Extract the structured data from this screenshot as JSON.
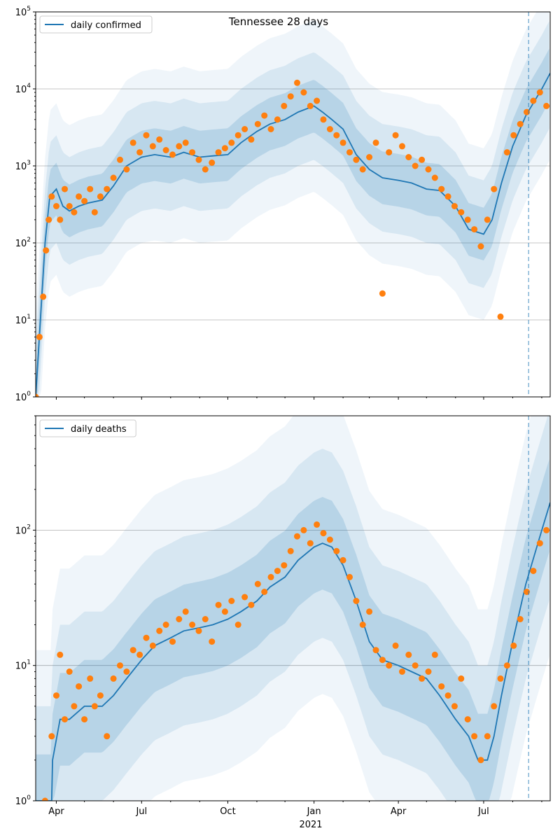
{
  "chart_data": [
    {
      "type": "line",
      "title": "Tennessee 28 days",
      "xlabel": "",
      "ylabel": "",
      "yscale": "log",
      "ylim": [
        1,
        100000
      ],
      "xlim": [
        "2020-03-10",
        "2021-09-10"
      ],
      "grid": "horizontal at major y ticks",
      "legend_position": "top-left",
      "y_ticks": [
        "10^0",
        "10^1",
        "10^2",
        "10^3",
        "10^4",
        "10^5"
      ],
      "x_ticks": [
        "Apr",
        "Jul",
        "Oct",
        "Jan",
        "Apr",
        "Jul"
      ],
      "x_year_label": "2021",
      "vline_date": "2021-08-18",
      "colors": {
        "line": "#1f77b4",
        "points": "#ff7f0e",
        "band": "#1f77b4"
      },
      "series": [
        {
          "name": "daily confirmed",
          "kind": "model-median",
          "x": [
            "2020-03-10",
            "2020-03-15",
            "2020-03-20",
            "2020-03-25",
            "2020-04-01",
            "2020-04-08",
            "2020-04-15",
            "2020-04-25",
            "2020-05-05",
            "2020-05-20",
            "2020-06-01",
            "2020-06-15",
            "2020-07-01",
            "2020-07-15",
            "2020-08-01",
            "2020-08-15",
            "2020-09-01",
            "2020-09-15",
            "2020-10-01",
            "2020-10-15",
            "2020-11-01",
            "2020-11-15",
            "2020-12-01",
            "2020-12-15",
            "2021-01-01",
            "2021-01-10",
            "2021-01-20",
            "2021-02-01",
            "2021-02-15",
            "2021-03-01",
            "2021-03-15",
            "2021-04-01",
            "2021-04-15",
            "2021-05-01",
            "2021-05-15",
            "2021-06-01",
            "2021-06-15",
            "2021-07-01",
            "2021-07-10",
            "2021-07-20",
            "2021-08-01",
            "2021-08-15",
            "2021-09-01",
            "2021-09-10"
          ],
          "values": [
            1,
            10,
            100,
            400,
            500,
            300,
            260,
            300,
            330,
            360,
            550,
            1000,
            1300,
            1400,
            1300,
            1500,
            1300,
            1350,
            1400,
            2000,
            2800,
            3500,
            4000,
            5000,
            6000,
            5000,
            4000,
            3000,
            1400,
            900,
            700,
            650,
            600,
            500,
            480,
            300,
            150,
            130,
            200,
            600,
            1800,
            4500,
            10000,
            16000
          ]
        },
        {
          "name": "",
          "kind": "observed daily confirmed (dots)",
          "x": [
            "2020-03-10",
            "2020-03-14",
            "2020-03-18",
            "2020-03-21",
            "2020-03-24",
            "2020-03-27",
            "2020-04-01",
            "2020-04-05",
            "2020-04-10",
            "2020-04-15",
            "2020-04-20",
            "2020-04-25",
            "2020-05-01",
            "2020-05-07",
            "2020-05-12",
            "2020-05-18",
            "2020-05-25",
            "2020-06-01",
            "2020-06-08",
            "2020-06-15",
            "2020-06-22",
            "2020-06-29",
            "2020-07-06",
            "2020-07-13",
            "2020-07-20",
            "2020-07-27",
            "2020-08-03",
            "2020-08-10",
            "2020-08-17",
            "2020-08-24",
            "2020-08-31",
            "2020-09-07",
            "2020-09-14",
            "2020-09-21",
            "2020-09-28",
            "2020-10-05",
            "2020-10-12",
            "2020-10-19",
            "2020-10-26",
            "2020-11-02",
            "2020-11-09",
            "2020-11-16",
            "2020-11-23",
            "2020-11-30",
            "2020-12-07",
            "2020-12-14",
            "2020-12-21",
            "2020-12-28",
            "2021-01-04",
            "2021-01-11",
            "2021-01-18",
            "2021-01-25",
            "2021-02-01",
            "2021-02-08",
            "2021-02-15",
            "2021-02-22",
            "2021-03-01",
            "2021-03-08",
            "2021-03-15",
            "2021-03-22",
            "2021-03-29",
            "2021-04-05",
            "2021-04-12",
            "2021-04-19",
            "2021-04-26",
            "2021-05-03",
            "2021-05-10",
            "2021-05-17",
            "2021-05-24",
            "2021-05-31",
            "2021-06-07",
            "2021-06-14",
            "2021-06-21",
            "2021-06-28",
            "2021-07-05",
            "2021-07-12",
            "2021-07-19",
            "2021-07-26",
            "2021-08-02",
            "2021-08-09",
            "2021-08-16",
            "2021-08-23",
            "2021-08-30",
            "2021-09-06"
          ],
          "values": [
            1,
            6,
            20,
            80,
            200,
            400,
            300,
            200,
            500,
            300,
            250,
            400,
            350,
            500,
            250,
            400,
            500,
            700,
            1200,
            900,
            2000,
            1500,
            2500,
            1800,
            2200,
            1600,
            1400,
            1800,
            2000,
            1500,
            1200,
            900,
            1100,
            1500,
            1700,
            2000,
            2500,
            3000,
            2200,
            3500,
            4500,
            3000,
            4000,
            6000,
            8000,
            12000,
            9000,
            6000,
            7000,
            4000,
            3000,
            2500,
            2000,
            1500,
            1200,
            900,
            1300,
            2000,
            22,
            1500,
            2500,
            1800,
            1300,
            1000,
            1200,
            900,
            700,
            500,
            400,
            300,
            250,
            200,
            150,
            90,
            200,
            500,
            11,
            1500,
            2500,
            3500,
            5000,
            7000,
            9000,
            6000
          ]
        }
      ]
    },
    {
      "type": "line",
      "title": "",
      "xlabel": "",
      "ylabel": "",
      "yscale": "log",
      "ylim": [
        1,
        700
      ],
      "xlim": [
        "2020-03-10",
        "2021-09-10"
      ],
      "grid": "horizontal at major y ticks",
      "legend_position": "top-left",
      "y_ticks": [
        "10^0",
        "10^1",
        "10^2"
      ],
      "x_ticks": [
        "Apr",
        "Jul",
        "Oct",
        "Jan",
        "Apr",
        "Jul"
      ],
      "x_year_label": "2021",
      "vline_date": "2021-08-18",
      "colors": {
        "line": "#1f77b4",
        "points": "#ff7f0e",
        "band": "#1f77b4"
      },
      "series": [
        {
          "name": "daily deaths",
          "kind": "model-median",
          "x": [
            "2020-03-10",
            "2020-03-27",
            "2020-03-28",
            "2020-04-05",
            "2020-04-15",
            "2020-05-01",
            "2020-05-20",
            "2020-06-01",
            "2020-06-15",
            "2020-07-01",
            "2020-07-15",
            "2020-08-01",
            "2020-08-15",
            "2020-09-01",
            "2020-09-15",
            "2020-10-01",
            "2020-10-15",
            "2020-11-01",
            "2020-11-15",
            "2020-12-01",
            "2020-12-15",
            "2021-01-01",
            "2021-01-10",
            "2021-01-20",
            "2021-02-01",
            "2021-02-15",
            "2021-03-01",
            "2021-03-15",
            "2021-04-01",
            "2021-04-15",
            "2021-05-01",
            "2021-05-15",
            "2021-06-01",
            "2021-06-15",
            "2021-06-25",
            "2021-07-05",
            "2021-07-12",
            "2021-07-20",
            "2021-08-01",
            "2021-08-15",
            "2021-09-01",
            "2021-09-10"
          ],
          "values": [
            1,
            1,
            2,
            4,
            4,
            5,
            5,
            6,
            8,
            11,
            14,
            16,
            18,
            19,
            20,
            22,
            25,
            30,
            38,
            45,
            60,
            75,
            80,
            75,
            55,
            30,
            15,
            11,
            10,
            9,
            8,
            6,
            4,
            3,
            2,
            2,
            3,
            6,
            15,
            40,
            100,
            160
          ]
        },
        {
          "name": "",
          "kind": "observed daily deaths (dots)",
          "x": [
            "2020-03-20",
            "2020-03-27",
            "2020-04-01",
            "2020-04-05",
            "2020-04-10",
            "2020-04-15",
            "2020-04-20",
            "2020-04-25",
            "2020-05-01",
            "2020-05-07",
            "2020-05-12",
            "2020-05-18",
            "2020-05-25",
            "2020-06-01",
            "2020-06-08",
            "2020-06-15",
            "2020-06-22",
            "2020-06-29",
            "2020-07-06",
            "2020-07-13",
            "2020-07-20",
            "2020-07-27",
            "2020-08-03",
            "2020-08-10",
            "2020-08-17",
            "2020-08-24",
            "2020-08-31",
            "2020-09-07",
            "2020-09-14",
            "2020-09-21",
            "2020-09-28",
            "2020-10-05",
            "2020-10-12",
            "2020-10-19",
            "2020-10-26",
            "2020-11-02",
            "2020-11-09",
            "2020-11-16",
            "2020-11-23",
            "2020-11-30",
            "2020-12-07",
            "2020-12-14",
            "2020-12-21",
            "2020-12-28",
            "2021-01-04",
            "2021-01-11",
            "2021-01-18",
            "2021-01-25",
            "2021-02-01",
            "2021-02-08",
            "2021-02-15",
            "2021-02-22",
            "2021-03-01",
            "2021-03-08",
            "2021-03-15",
            "2021-03-22",
            "2021-03-29",
            "2021-04-05",
            "2021-04-12",
            "2021-04-19",
            "2021-04-26",
            "2021-05-03",
            "2021-05-10",
            "2021-05-17",
            "2021-05-24",
            "2021-05-31",
            "2021-06-07",
            "2021-06-14",
            "2021-06-21",
            "2021-06-28",
            "2021-07-05",
            "2021-07-12",
            "2021-07-19",
            "2021-07-26",
            "2021-08-02",
            "2021-08-09",
            "2021-08-16",
            "2021-08-23",
            "2021-08-30",
            "2021-09-06"
          ],
          "values": [
            1,
            3,
            6,
            12,
            4,
            9,
            5,
            7,
            4,
            8,
            5,
            6,
            3,
            8,
            10,
            9,
            13,
            12,
            16,
            14,
            18,
            20,
            15,
            22,
            25,
            20,
            18,
            22,
            15,
            28,
            25,
            30,
            20,
            32,
            28,
            40,
            35,
            45,
            50,
            55,
            70,
            90,
            100,
            80,
            110,
            95,
            85,
            70,
            60,
            45,
            30,
            20,
            25,
            13,
            11,
            10,
            14,
            9,
            12,
            10,
            8,
            9,
            12,
            7,
            6,
            5,
            8,
            4,
            3,
            2,
            3,
            5,
            8,
            10,
            14,
            22,
            35,
            50,
            80,
            100
          ]
        }
      ]
    }
  ]
}
